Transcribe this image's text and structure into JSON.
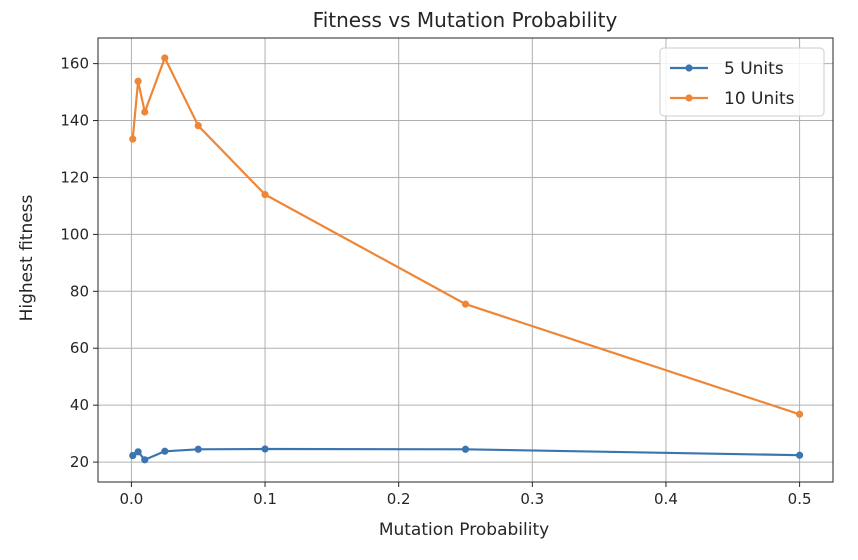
{
  "chart_data": {
    "type": "line",
    "title": "Fitness vs Mutation Probability",
    "xlabel": "Mutation Probability",
    "ylabel": "Highest fitness",
    "xlim": [
      -0.025,
      0.525
    ],
    "ylim": [
      13.0,
      169.0
    ],
    "xticks": [
      0.0,
      0.1,
      0.2,
      0.3,
      0.4,
      0.5
    ],
    "xtick_labels": [
      "0.0",
      "0.1",
      "0.2",
      "0.3",
      "0.4",
      "0.5"
    ],
    "yticks": [
      20,
      40,
      60,
      80,
      100,
      120,
      140,
      160
    ],
    "ytick_labels": [
      "20",
      "40",
      "60",
      "80",
      "100",
      "120",
      "140",
      "160"
    ],
    "grid": true,
    "legend_position": "top-right",
    "series": [
      {
        "name": "5 Units",
        "color": "#3b75af",
        "x": [
          0.001,
          0.005,
          0.01,
          0.025,
          0.05,
          0.1,
          0.25,
          0.5
        ],
        "y": [
          22.3,
          23.6,
          20.8,
          23.8,
          24.5,
          24.6,
          24.5,
          22.4
        ]
      },
      {
        "name": "10 Units",
        "color": "#ef8636",
        "x": [
          0.001,
          0.005,
          0.01,
          0.025,
          0.05,
          0.1,
          0.25,
          0.5
        ],
        "y": [
          133.5,
          153.8,
          143.0,
          162.0,
          138.2,
          114.0,
          75.5,
          36.8
        ]
      }
    ]
  }
}
